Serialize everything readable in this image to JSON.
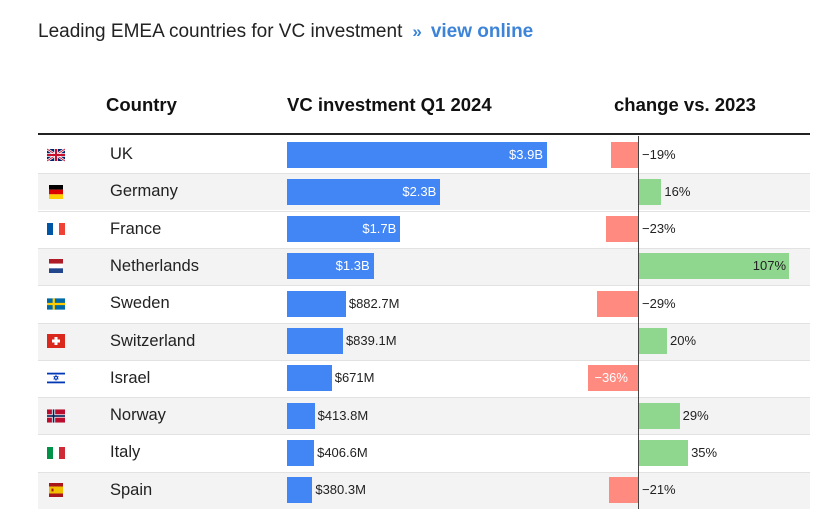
{
  "title": "Leading EMEA countries for VC investment",
  "title_separator": "»",
  "link_text": "view online",
  "columns": {
    "country": "Country",
    "investment": "VC investment Q1 2024",
    "change": "change vs. 2023"
  },
  "colors": {
    "investment_bar": "#4285f4",
    "negative_change": "#ff8a80",
    "positive_change": "#8fd68f",
    "link": "#3d84d8"
  },
  "chart_data": {
    "type": "bar",
    "categories": [
      "UK",
      "Germany",
      "France",
      "Netherlands",
      "Sweden",
      "Switzerland",
      "Israel",
      "Norway",
      "Italy",
      "Spain"
    ],
    "series": [
      {
        "name": "VC investment Q1 2024",
        "values": [
          3900,
          2300,
          1700,
          1300,
          882.7,
          839.1,
          671,
          413.8,
          406.6,
          380.3
        ],
        "labels": [
          "$3.9B",
          "$2.3B",
          "$1.7B",
          "$1.3B",
          "$882.7M",
          "$839.1M",
          "$671M",
          "$413.8M",
          "$406.6M",
          "$380.3M"
        ],
        "xlim": [
          0,
          4000
        ]
      },
      {
        "name": "change vs. 2023",
        "values": [
          -19,
          16,
          -23,
          107,
          -29,
          20,
          -36,
          29,
          35,
          -21
        ],
        "labels": [
          "−19%",
          "16%",
          "−23%",
          "107%",
          "−29%",
          "20%",
          "−36%",
          "29%",
          "35%",
          "−21%"
        ],
        "xlim": [
          -40,
          115
        ]
      }
    ],
    "flags": [
      "uk",
      "germany",
      "france",
      "netherlands",
      "sweden",
      "switzerland",
      "israel",
      "norway",
      "italy",
      "spain"
    ]
  }
}
